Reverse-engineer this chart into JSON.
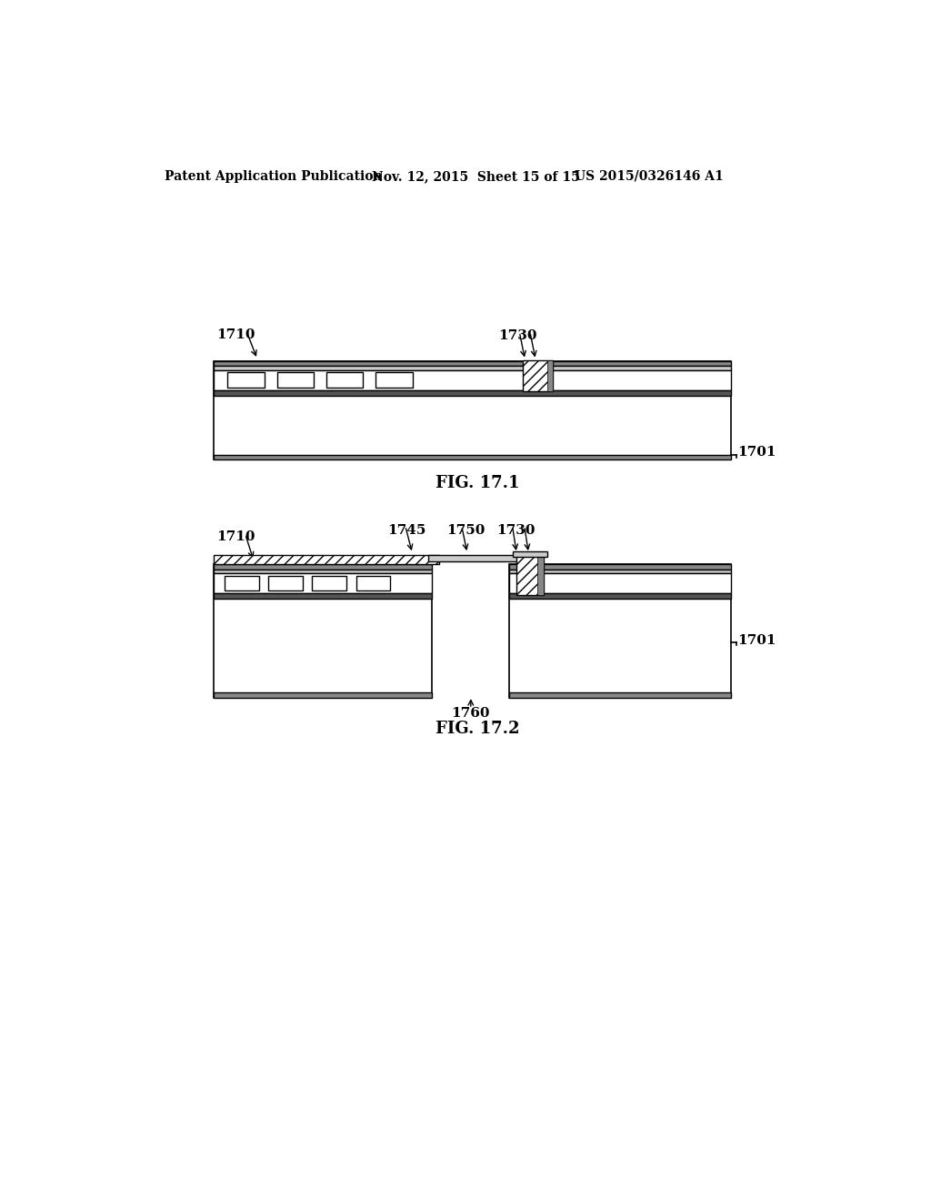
{
  "bg_color": "#ffffff",
  "header_text": "Patent Application Publication",
  "header_date": "Nov. 12, 2015  Sheet 15 of 15",
  "header_patent": "US 2015/0326146 A1",
  "fig1_label": "FIG. 17.1",
  "fig2_label": "FIG. 17.2",
  "label_1710_fig1": "1710",
  "label_1730_fig1": "1730",
  "label_1701_fig1": "1701",
  "label_1710_fig2": "1710",
  "label_1730_fig2": "1730",
  "label_1745_fig2": "1745",
  "label_1750_fig2": "1750",
  "label_1760_fig2": "1760",
  "label_1701_fig2": "1701",
  "line_color": "#000000",
  "fill_gray_light": "#d0d0d0",
  "fill_gray_med": "#b0b0b0",
  "fill_white": "#ffffff"
}
